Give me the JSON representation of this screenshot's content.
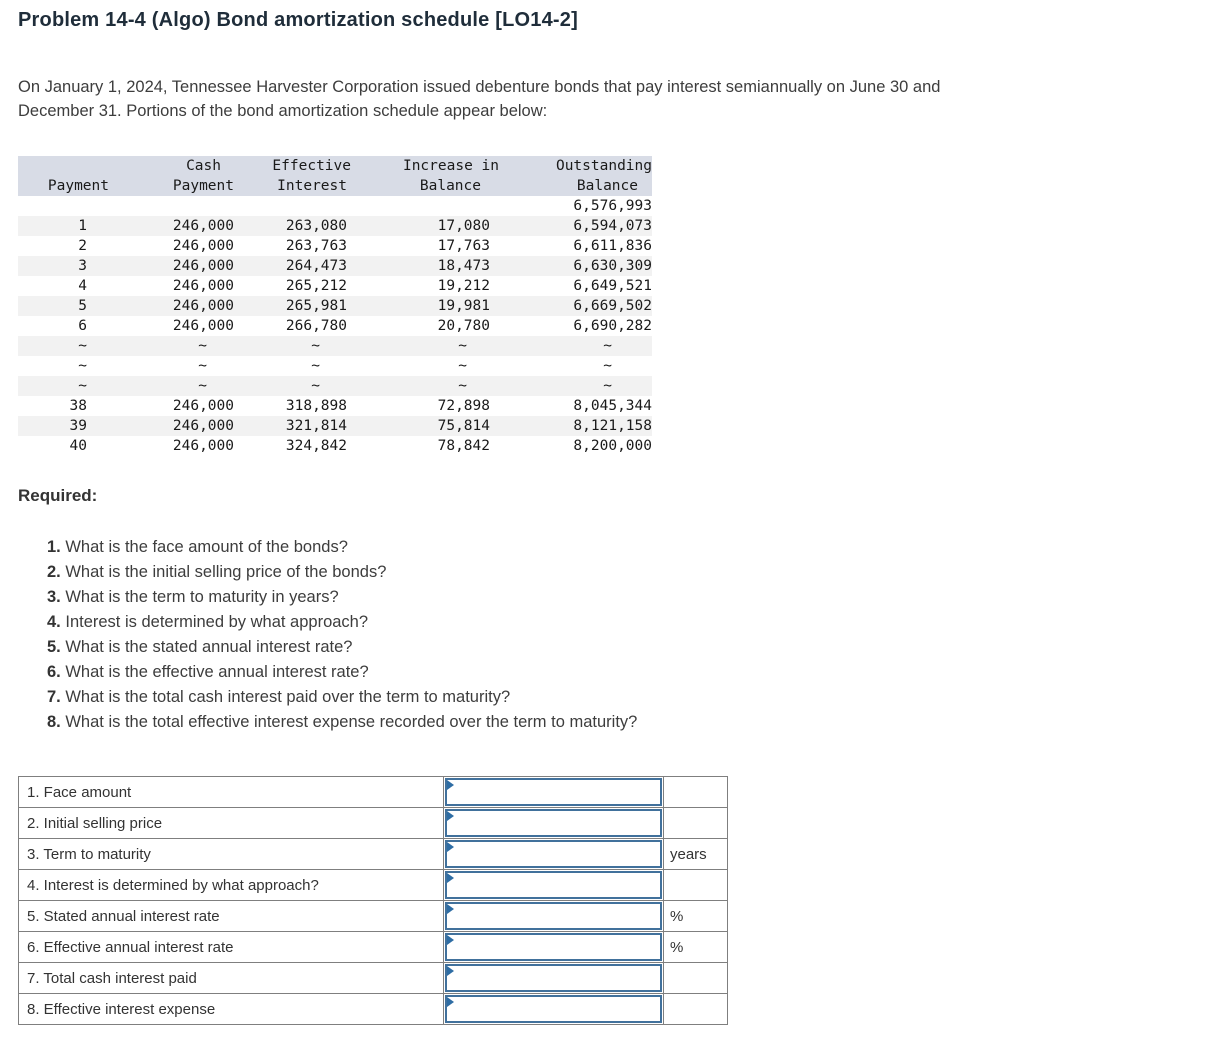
{
  "title": "Problem 14-4 (Algo) Bond amortization schedule [LO14-2]",
  "intro": {
    "line1": "On January 1, 2024, Tennessee Harvester Corporation issued debenture bonds that pay interest semiannually on June 30 and",
    "line2": "December 31. Portions of the bond amortization schedule appear below:"
  },
  "amort": {
    "headers": {
      "c0": {
        "l1": "",
        "l2": "Payment"
      },
      "c1": {
        "l1": "Cash",
        "l2": "Payment"
      },
      "c2": {
        "l1": "Effective",
        "l2": "Interest"
      },
      "c3": {
        "l1": "Increase in",
        "l2": "Balance"
      },
      "c4": {
        "l1": "Outstanding",
        "l2": "Balance"
      }
    },
    "rows": [
      {
        "c0": "",
        "c1": "",
        "c2": "",
        "c3": "",
        "c4": "6,576,993"
      },
      {
        "c0": "1",
        "c1": "246,000",
        "c2": "263,080",
        "c3": "17,080",
        "c4": "6,594,073"
      },
      {
        "c0": "2",
        "c1": "246,000",
        "c2": "263,763",
        "c3": "17,763",
        "c4": "6,611,836"
      },
      {
        "c0": "3",
        "c1": "246,000",
        "c2": "264,473",
        "c3": "18,473",
        "c4": "6,630,309"
      },
      {
        "c0": "4",
        "c1": "246,000",
        "c2": "265,212",
        "c3": "19,212",
        "c4": "6,649,521"
      },
      {
        "c0": "5",
        "c1": "246,000",
        "c2": "265,981",
        "c3": "19,981",
        "c4": "6,669,502"
      },
      {
        "c0": "6",
        "c1": "246,000",
        "c2": "266,780",
        "c3": "20,780",
        "c4": "6,690,282"
      },
      {
        "c0": "~",
        "c1": "~",
        "c2": "~",
        "c3": "~",
        "c4": "~"
      },
      {
        "c0": "~",
        "c1": "~",
        "c2": "~",
        "c3": "~",
        "c4": "~"
      },
      {
        "c0": "~",
        "c1": "~",
        "c2": "~",
        "c3": "~",
        "c4": "~"
      },
      {
        "c0": "38",
        "c1": "246,000",
        "c2": "318,898",
        "c3": "72,898",
        "c4": "8,045,344"
      },
      {
        "c0": "39",
        "c1": "246,000",
        "c2": "321,814",
        "c3": "75,814",
        "c4": "8,121,158"
      },
      {
        "c0": "40",
        "c1": "246,000",
        "c2": "324,842",
        "c3": "78,842",
        "c4": "8,200,000"
      }
    ]
  },
  "required_label": "Required:",
  "questions": [
    {
      "num": "1.",
      "text": "What is the face amount of the bonds?"
    },
    {
      "num": "2.",
      "text": "What is the initial selling price of the bonds?"
    },
    {
      "num": "3.",
      "text": "What is the term to maturity in years?"
    },
    {
      "num": "4.",
      "text": "Interest is determined by what approach?"
    },
    {
      "num": "5.",
      "text": "What is the stated annual interest rate?"
    },
    {
      "num": "6.",
      "text": "What is the effective annual interest rate?"
    },
    {
      "num": "7.",
      "text": "What is the total cash interest paid over the term to maturity?"
    },
    {
      "num": "8.",
      "text": "What is the total effective interest expense recorded over the term to maturity?"
    }
  ],
  "answer_table": {
    "rows": [
      {
        "label": "1. Face amount",
        "unit": "",
        "value": ""
      },
      {
        "label": "2. Initial selling price",
        "unit": "",
        "value": ""
      },
      {
        "label": "3. Term to maturity",
        "unit": "years",
        "value": ""
      },
      {
        "label": "4. Interest is determined by what approach?",
        "unit": "",
        "value": ""
      },
      {
        "label": "5. Stated annual interest rate",
        "unit": "%",
        "value": ""
      },
      {
        "label": "6. Effective annual interest rate",
        "unit": "%",
        "value": ""
      },
      {
        "label": "7. Total cash interest paid",
        "unit": "",
        "value": ""
      },
      {
        "label": "8. Effective interest expense",
        "unit": "",
        "value": ""
      }
    ]
  },
  "colors": {
    "table_header_bg": "#d8dce6",
    "table_stripe_bg": "#f2f2f2",
    "answer_border": "#7f7f7f",
    "input_border": "#41719c",
    "input_marker": "#2e6da4"
  }
}
